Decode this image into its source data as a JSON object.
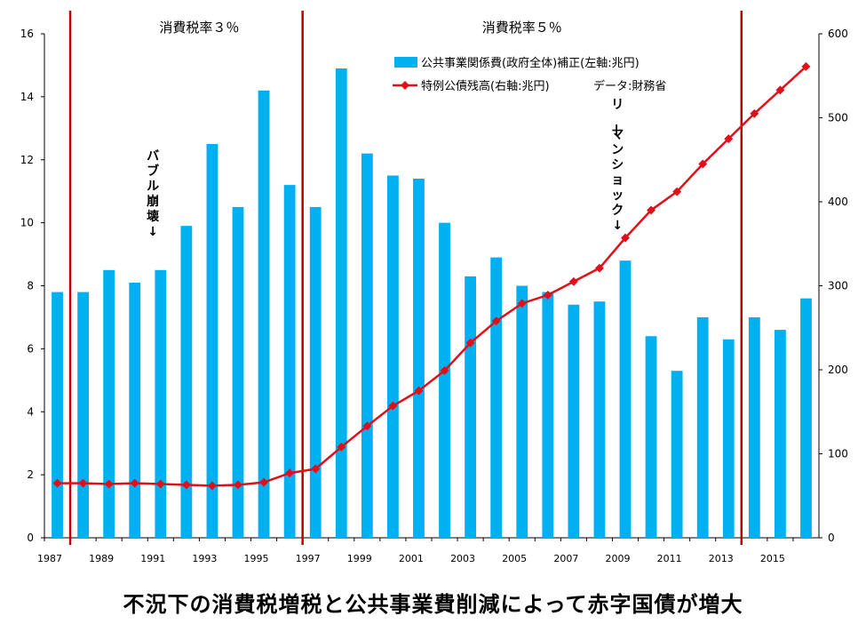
{
  "chart_data": {
    "type": "bar",
    "title": "",
    "bottom_caption": "不況下の消費税増税と公共事業費削減によって赤字国債が増大",
    "years": [
      1987,
      1988,
      1989,
      1990,
      1991,
      1992,
      1993,
      1994,
      1995,
      1996,
      1997,
      1998,
      1999,
      2000,
      2001,
      2002,
      2003,
      2004,
      2005,
      2006,
      2007,
      2008,
      2009,
      2010,
      2011,
      2012,
      2013,
      2014,
      2015,
      2016
    ],
    "x_tick_labels": [
      "1987",
      "1989",
      "1991",
      "1993",
      "1995",
      "1997",
      "1999",
      "2001",
      "2003",
      "2005",
      "2007",
      "2009",
      "2011",
      "2013",
      "2015"
    ],
    "x_tick_years": [
      1987,
      1989,
      1991,
      1993,
      1995,
      1997,
      1999,
      2001,
      2003,
      2005,
      2007,
      2009,
      2011,
      2013,
      2015
    ],
    "series": [
      {
        "name": "公共事業関係費(政府全体)補正(左軸:兆円)",
        "type": "bar",
        "axis": "left",
        "color": "#00B0F0",
        "values": [
          7.8,
          7.8,
          8.5,
          8.1,
          8.5,
          9.9,
          12.5,
          10.5,
          14.2,
          11.2,
          10.5,
          14.9,
          12.2,
          11.5,
          11.4,
          10.0,
          8.3,
          8.9,
          8.0,
          7.8,
          7.4,
          7.5,
          8.8,
          6.4,
          5.3,
          7.0,
          6.3,
          7.0,
          6.6,
          7.6
        ]
      },
      {
        "name": "特例公債残高(右軸:兆円)",
        "type": "line",
        "axis": "right",
        "color": "#E0101A",
        "values": [
          65,
          65,
          64,
          65,
          64,
          63,
          62,
          63,
          66,
          77,
          82,
          108,
          133,
          157,
          175,
          199,
          232,
          258,
          279,
          289,
          305,
          321,
          357,
          390,
          412,
          445,
          475,
          505,
          533,
          561
        ]
      }
    ],
    "left_axis": {
      "range": [
        0,
        16
      ],
      "ticks": [
        "0",
        "2",
        "4",
        "6",
        "8",
        "10",
        "12",
        "14",
        "16"
      ]
    },
    "right_axis": {
      "range": [
        0,
        600
      ],
      "ticks": [
        "0",
        "100",
        "200",
        "300",
        "400",
        "500",
        "600"
      ]
    },
    "legend_source_text": "データ:財務省",
    "legend_position": "top-center",
    "dividers": [
      {
        "between": [
          1987,
          1988
        ],
        "color": "#C00000"
      },
      {
        "between": [
          1996,
          1997
        ],
        "color": "#C00000"
      },
      {
        "between": [
          2013,
          2014
        ],
        "color": "#C00000"
      }
    ],
    "period_labels": [
      {
        "text": "消費税率３％",
        "from": 1988.5,
        "to": 1996.5
      },
      {
        "text": "消費税率５％",
        "from": 1997,
        "to": 2013
      }
    ],
    "annotations": [
      {
        "text": "バブル崩壊↓",
        "year": 1990.7
      },
      {
        "text": "リーマンショック↓",
        "year": 2008.7
      }
    ]
  }
}
